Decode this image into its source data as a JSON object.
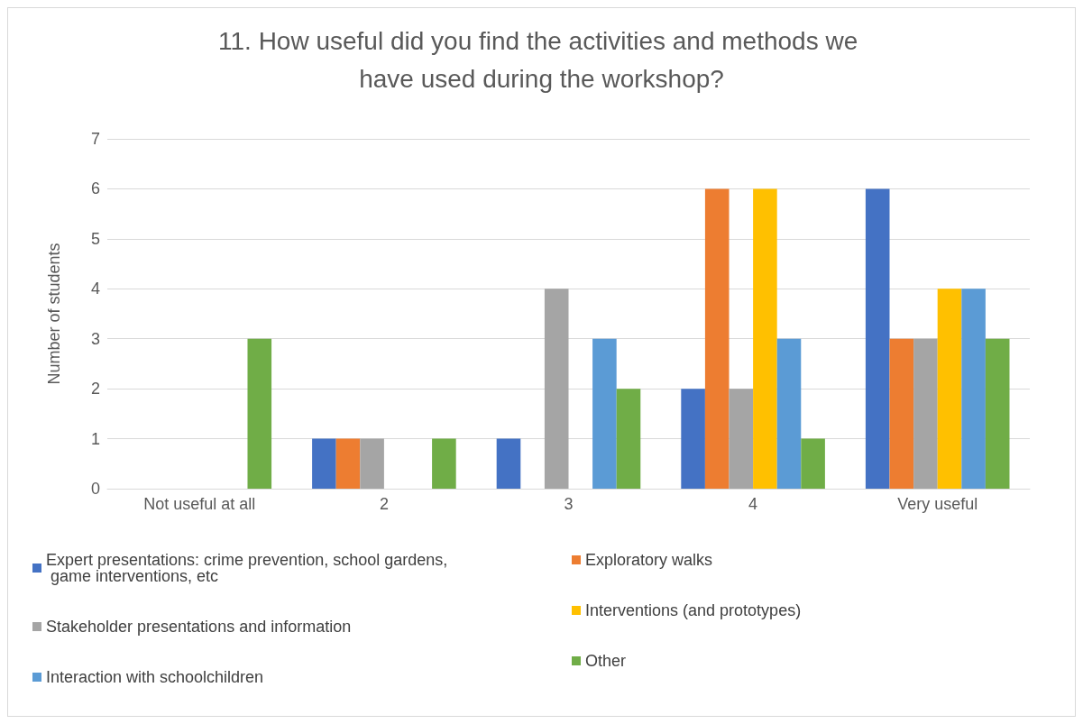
{
  "chart_data": {
    "type": "bar",
    "title": "11. How useful did you find the activities and methods we have used during the workshop?",
    "ylabel": "Number of students",
    "categories": [
      "Not useful at all",
      "2",
      "3",
      "4",
      "Very useful"
    ],
    "ylim": [
      0,
      7
    ],
    "yticks": [
      0,
      1,
      2,
      3,
      4,
      5,
      6,
      7
    ],
    "grid": "y",
    "legend": "bottom",
    "series": [
      {
        "name": "Expert presentations: crime prevention, school gardens, game interventions, etc",
        "color": "#4472c4",
        "values": [
          0,
          1,
          1,
          2,
          6
        ]
      },
      {
        "name": "Exploratory walks",
        "color": "#ed7d31",
        "values": [
          0,
          1,
          0,
          6,
          3
        ]
      },
      {
        "name": "Stakeholder presentations and information",
        "color": "#a5a5a5",
        "values": [
          0,
          1,
          4,
          2,
          3
        ]
      },
      {
        "name": "Interventions (and prototypes)",
        "color": "#ffc000",
        "values": [
          0,
          0,
          0,
          6,
          4
        ]
      },
      {
        "name": "Interaction with schoolchildren",
        "color": "#5b9bd5",
        "values": [
          0,
          0,
          3,
          3,
          4
        ]
      },
      {
        "name": "Other",
        "color": "#70ad47",
        "values": [
          3,
          1,
          2,
          1,
          3
        ]
      }
    ]
  }
}
